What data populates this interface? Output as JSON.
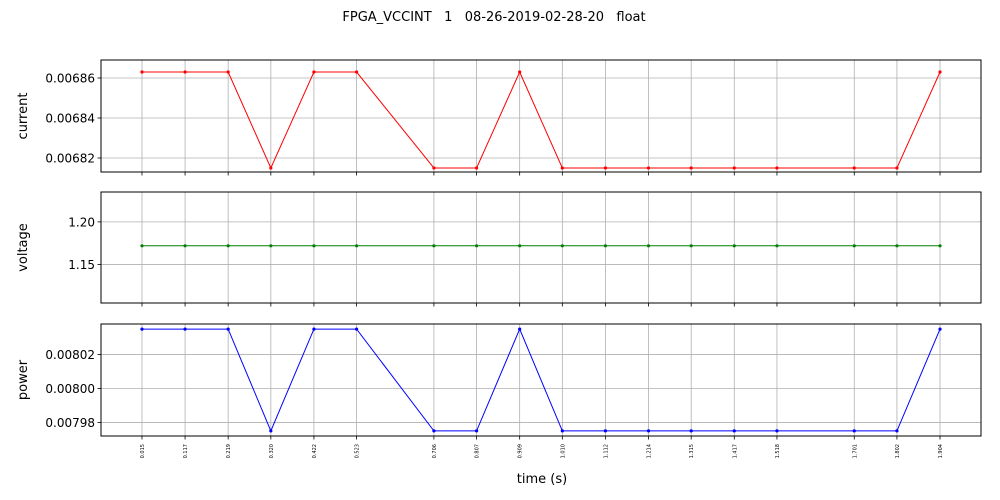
{
  "chart_data": {
    "type": "line",
    "title": "FPGA_VCCINT   1   08-26-2019-02-28-20   float",
    "xlabel": "time (s)",
    "x": [
      0.015,
      0.117,
      0.219,
      0.32,
      0.422,
      0.523,
      0.706,
      0.807,
      0.909,
      1.01,
      1.112,
      1.214,
      1.315,
      1.417,
      1.518,
      1.701,
      1.802,
      1.904
    ],
    "x_tick_labels": [
      "0.015",
      "0.117",
      "0.219",
      "0.320",
      "0.422",
      "0.523",
      "0.706",
      "0.807",
      "0.909",
      "1.010",
      "1.112",
      "1.214",
      "1.315",
      "1.417",
      "1.518",
      "1.701",
      "1.802",
      "1.904"
    ],
    "grid": true,
    "panels": [
      {
        "ylabel": "current",
        "color": "#ff0000",
        "ylim": [
          0.006813,
          0.006869
        ],
        "yticks": [
          0.00682,
          0.00684,
          0.00686
        ],
        "ytick_labels": [
          "0.00682",
          "0.00684",
          "0.00686"
        ],
        "values": [
          0.006863,
          0.006863,
          0.006863,
          0.006815,
          0.006863,
          0.006863,
          0.006815,
          0.006815,
          0.006863,
          0.006815,
          0.006815,
          0.006815,
          0.006815,
          0.006815,
          0.006815,
          0.006815,
          0.006815,
          0.006863
        ]
      },
      {
        "ylabel": "voltage",
        "color": "#008000",
        "ylim": [
          1.105,
          1.235
        ],
        "yticks": [
          1.15,
          1.2
        ],
        "ytick_labels": [
          "1.15",
          "1.20"
        ],
        "values": [
          1.172,
          1.172,
          1.172,
          1.172,
          1.172,
          1.172,
          1.172,
          1.172,
          1.172,
          1.172,
          1.172,
          1.172,
          1.172,
          1.172,
          1.172,
          1.172,
          1.172,
          1.172
        ]
      },
      {
        "ylabel": "power",
        "color": "#0000ff",
        "ylim": [
          0.007972,
          0.008038
        ],
        "yticks": [
          0.00798,
          0.008,
          0.00802
        ],
        "ytick_labels": [
          "0.00798",
          "0.00800",
          "0.00802"
        ],
        "values": [
          0.008035,
          0.008035,
          0.008035,
          0.007975,
          0.008035,
          0.008035,
          0.007975,
          0.007975,
          0.008035,
          0.007975,
          0.007975,
          0.007975,
          0.007975,
          0.007975,
          0.007975,
          0.007975,
          0.007975,
          0.008035
        ]
      }
    ]
  }
}
